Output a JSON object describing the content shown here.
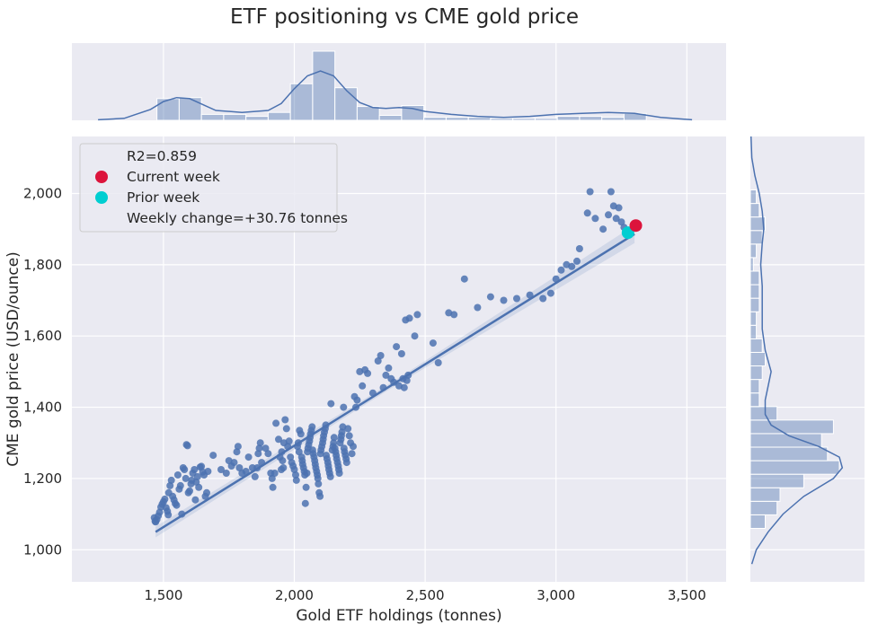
{
  "chart_data": {
    "type": "scatter",
    "title": "ETF positioning vs CME gold price",
    "xlabel": "Gold ETF holdings (tonnes)",
    "ylabel": "CME gold price (USD/ounce)",
    "xlim": [
      1150,
      3650
    ],
    "ylim": [
      910,
      2160
    ],
    "xticks": [
      "1,500",
      "2,000",
      "2,500",
      "3,000",
      "3,500"
    ],
    "xtick_values": [
      1500,
      2000,
      2500,
      3000,
      3500
    ],
    "yticks": [
      "1,000",
      "1,200",
      "1,400",
      "1,600",
      "1,800",
      "2,000"
    ],
    "ytick_values": [
      1000,
      1200,
      1400,
      1600,
      1800,
      2000
    ],
    "grid": true,
    "background": "#eaeaf2",
    "colors": {
      "scatter": "#4c72b0",
      "current_week": "#dc143c",
      "prior_week": "#00ced1",
      "hist": "#4c72b0"
    },
    "legend": {
      "placement": "upper-left",
      "entries": [
        {
          "label": "R2=0.859",
          "marker": "none"
        },
        {
          "label": "Current week",
          "marker": "current_week"
        },
        {
          "label": "Prior week",
          "marker": "prior_week"
        },
        {
          "label": "Weekly change=+30.76 tonnes",
          "marker": "none"
        }
      ]
    },
    "regression": {
      "x": [
        1470,
        3300
      ],
      "y": [
        1050,
        1886
      ]
    },
    "current_week": {
      "x": 3305,
      "y": 1910
    },
    "prior_week": {
      "x": 3275,
      "y": 1890
    },
    "points": [
      [
        1465,
        1090
      ],
      [
        1468,
        1080
      ],
      [
        1470,
        1078
      ],
      [
        1475,
        1085
      ],
      [
        1480,
        1095
      ],
      [
        1485,
        1105
      ],
      [
        1490,
        1120
      ],
      [
        1495,
        1128
      ],
      [
        1500,
        1135
      ],
      [
        1505,
        1142
      ],
      [
        1510,
        1118
      ],
      [
        1515,
        1108
      ],
      [
        1518,
        1098
      ],
      [
        1520,
        1160
      ],
      [
        1525,
        1180
      ],
      [
        1530,
        1195
      ],
      [
        1535,
        1150
      ],
      [
        1540,
        1140
      ],
      [
        1545,
        1130
      ],
      [
        1550,
        1125
      ],
      [
        1555,
        1210
      ],
      [
        1560,
        1170
      ],
      [
        1565,
        1180
      ],
      [
        1570,
        1100
      ],
      [
        1575,
        1230
      ],
      [
        1580,
        1225
      ],
      [
        1585,
        1200
      ],
      [
        1588,
        1295
      ],
      [
        1592,
        1292
      ],
      [
        1595,
        1160
      ],
      [
        1600,
        1165
      ],
      [
        1605,
        1185
      ],
      [
        1608,
        1195
      ],
      [
        1612,
        1215
      ],
      [
        1618,
        1225
      ],
      [
        1622,
        1140
      ],
      [
        1625,
        1190
      ],
      [
        1630,
        1205
      ],
      [
        1635,
        1175
      ],
      [
        1640,
        1232
      ],
      [
        1645,
        1234
      ],
      [
        1650,
        1218
      ],
      [
        1655,
        1210
      ],
      [
        1660,
        1150
      ],
      [
        1665,
        1160
      ],
      [
        1670,
        1220
      ],
      [
        1690,
        1265
      ],
      [
        1720,
        1225
      ],
      [
        1740,
        1215
      ],
      [
        1750,
        1250
      ],
      [
        1760,
        1235
      ],
      [
        1770,
        1245
      ],
      [
        1780,
        1275
      ],
      [
        1785,
        1290
      ],
      [
        1790,
        1230
      ],
      [
        1800,
        1215
      ],
      [
        1815,
        1220
      ],
      [
        1825,
        1260
      ],
      [
        1840,
        1230
      ],
      [
        1850,
        1205
      ],
      [
        1858,
        1230
      ],
      [
        1862,
        1270
      ],
      [
        1866,
        1285
      ],
      [
        1870,
        1300
      ],
      [
        1875,
        1245
      ],
      [
        1890,
        1285
      ],
      [
        1900,
        1270
      ],
      [
        1910,
        1215
      ],
      [
        1915,
        1200
      ],
      [
        1918,
        1175
      ],
      [
        1925,
        1215
      ],
      [
        1930,
        1355
      ],
      [
        1940,
        1310
      ],
      [
        1945,
        1260
      ],
      [
        1950,
        1225
      ],
      [
        1952,
        1275
      ],
      [
        1955,
        1250
      ],
      [
        1958,
        1230
      ],
      [
        1960,
        1300
      ],
      [
        1965,
        1365
      ],
      [
        1970,
        1340
      ],
      [
        1975,
        1290
      ],
      [
        1980,
        1305
      ],
      [
        1985,
        1260
      ],
      [
        1990,
        1245
      ],
      [
        1995,
        1235
      ],
      [
        2000,
        1225
      ],
      [
        2005,
        1210
      ],
      [
        2008,
        1195
      ],
      [
        2012,
        1290
      ],
      [
        2015,
        1300
      ],
      [
        2018,
        1275
      ],
      [
        2020,
        1335
      ],
      [
        2025,
        1325
      ],
      [
        2028,
        1260
      ],
      [
        2030,
        1250
      ],
      [
        2032,
        1240
      ],
      [
        2035,
        1230
      ],
      [
        2038,
        1220
      ],
      [
        2040,
        1210
      ],
      [
        2042,
        1130
      ],
      [
        2045,
        1175
      ],
      [
        2048,
        1215
      ],
      [
        2050,
        1275
      ],
      [
        2052,
        1285
      ],
      [
        2055,
        1295
      ],
      [
        2058,
        1305
      ],
      [
        2060,
        1315
      ],
      [
        2062,
        1325
      ],
      [
        2065,
        1335
      ],
      [
        2068,
        1345
      ],
      [
        2070,
        1280
      ],
      [
        2072,
        1270
      ],
      [
        2075,
        1260
      ],
      [
        2078,
        1250
      ],
      [
        2080,
        1240
      ],
      [
        2082,
        1230
      ],
      [
        2085,
        1220
      ],
      [
        2088,
        1210
      ],
      [
        2090,
        1200
      ],
      [
        2092,
        1185
      ],
      [
        2095,
        1160
      ],
      [
        2098,
        1150
      ],
      [
        2100,
        1270
      ],
      [
        2102,
        1280
      ],
      [
        2105,
        1290
      ],
      [
        2108,
        1300
      ],
      [
        2110,
        1310
      ],
      [
        2112,
        1320
      ],
      [
        2115,
        1330
      ],
      [
        2118,
        1340
      ],
      [
        2120,
        1350
      ],
      [
        2122,
        1265
      ],
      [
        2125,
        1255
      ],
      [
        2128,
        1245
      ],
      [
        2130,
        1235
      ],
      [
        2132,
        1225
      ],
      [
        2135,
        1215
      ],
      [
        2138,
        1205
      ],
      [
        2140,
        1410
      ],
      [
        2145,
        1280
      ],
      [
        2148,
        1290
      ],
      [
        2150,
        1300
      ],
      [
        2152,
        1315
      ],
      [
        2155,
        1285
      ],
      [
        2158,
        1275
      ],
      [
        2160,
        1265
      ],
      [
        2162,
        1255
      ],
      [
        2165,
        1245
      ],
      [
        2168,
        1235
      ],
      [
        2170,
        1225
      ],
      [
        2172,
        1215
      ],
      [
        2175,
        1300
      ],
      [
        2178,
        1310
      ],
      [
        2180,
        1320
      ],
      [
        2182,
        1330
      ],
      [
        2185,
        1345
      ],
      [
        2188,
        1400
      ],
      [
        2190,
        1285
      ],
      [
        2192,
        1275
      ],
      [
        2195,
        1265
      ],
      [
        2198,
        1255
      ],
      [
        2200,
        1245
      ],
      [
        2205,
        1340
      ],
      [
        2210,
        1320
      ],
      [
        2215,
        1300
      ],
      [
        2220,
        1270
      ],
      [
        2225,
        1290
      ],
      [
        2230,
        1430
      ],
      [
        2235,
        1400
      ],
      [
        2240,
        1420
      ],
      [
        2250,
        1500
      ],
      [
        2260,
        1460
      ],
      [
        2270,
        1505
      ],
      [
        2280,
        1495
      ],
      [
        2300,
        1440
      ],
      [
        2320,
        1530
      ],
      [
        2330,
        1545
      ],
      [
        2340,
        1455
      ],
      [
        2350,
        1490
      ],
      [
        2360,
        1510
      ],
      [
        2370,
        1480
      ],
      [
        2380,
        1470
      ],
      [
        2390,
        1570
      ],
      [
        2400,
        1460
      ],
      [
        2410,
        1550
      ],
      [
        2415,
        1480
      ],
      [
        2420,
        1455
      ],
      [
        2425,
        1645
      ],
      [
        2430,
        1475
      ],
      [
        2435,
        1490
      ],
      [
        2440,
        1650
      ],
      [
        2460,
        1600
      ],
      [
        2470,
        1660
      ],
      [
        2530,
        1580
      ],
      [
        2550,
        1525
      ],
      [
        2590,
        1665
      ],
      [
        2610,
        1660
      ],
      [
        2650,
        1760
      ],
      [
        2700,
        1680
      ],
      [
        2750,
        1710
      ],
      [
        2800,
        1700
      ],
      [
        2850,
        1705
      ],
      [
        2900,
        1715
      ],
      [
        2950,
        1705
      ],
      [
        2980,
        1720
      ],
      [
        3000,
        1760
      ],
      [
        3020,
        1785
      ],
      [
        3040,
        1800
      ],
      [
        3060,
        1795
      ],
      [
        3080,
        1810
      ],
      [
        3090,
        1845
      ],
      [
        3120,
        1945
      ],
      [
        3130,
        2005
      ],
      [
        3150,
        1930
      ],
      [
        3180,
        1900
      ],
      [
        3200,
        1940
      ],
      [
        3210,
        2005
      ],
      [
        3220,
        1965
      ],
      [
        3230,
        1930
      ],
      [
        3240,
        1960
      ],
      [
        3250,
        1920
      ],
      [
        3260,
        1905
      ],
      [
        3270,
        1885
      ]
    ],
    "marginal_x": {
      "bin_edges": [
        1475,
        1560,
        1645,
        1730,
        1815,
        1900,
        1985,
        2070,
        2155,
        2240,
        2325,
        2410,
        2495,
        2580,
        2665,
        2750,
        2835,
        2920,
        3005,
        3090,
        3175,
        3260,
        3345
      ],
      "density": [
        0.22,
        0.23,
        0.06,
        0.06,
        0.04,
        0.08,
        0.37,
        0.7,
        0.33,
        0.14,
        0.05,
        0.15,
        0.03,
        0.03,
        0.03,
        0.02,
        0.02,
        0.02,
        0.04,
        0.04,
        0.03,
        0.07
      ],
      "kde_x": [
        1250,
        1350,
        1450,
        1500,
        1550,
        1600,
        1650,
        1700,
        1800,
        1900,
        1950,
        2000,
        2050,
        2100,
        2150,
        2200,
        2250,
        2300,
        2350,
        2400,
        2450,
        2500,
        2600,
        2700,
        2800,
        2900,
        3000,
        3100,
        3200,
        3300,
        3400,
        3520
      ],
      "kde_y": [
        0.005,
        0.02,
        0.11,
        0.19,
        0.23,
        0.22,
        0.16,
        0.1,
        0.08,
        0.1,
        0.17,
        0.32,
        0.45,
        0.5,
        0.45,
        0.3,
        0.18,
        0.13,
        0.12,
        0.13,
        0.12,
        0.09,
        0.06,
        0.04,
        0.03,
        0.04,
        0.06,
        0.07,
        0.08,
        0.07,
        0.03,
        0.005
      ]
    },
    "marginal_y": {
      "bin_edges": [
        1060,
        1098,
        1136,
        1174,
        1212,
        1250,
        1288,
        1326,
        1364,
        1402,
        1440,
        1478,
        1516,
        1554,
        1592,
        1630,
        1668,
        1706,
        1744,
        1782,
        1820,
        1858,
        1896,
        1934,
        1972,
        2010
      ],
      "density": [
        0.05,
        0.09,
        0.1,
        0.18,
        0.3,
        0.26,
        0.24,
        0.28,
        0.09,
        0.03,
        0.03,
        0.04,
        0.05,
        0.04,
        0.02,
        0.02,
        0.03,
        0.03,
        0.03,
        0.01,
        0.02,
        0.04,
        0.05,
        0.03,
        0.02
      ],
      "kde_y": [
        960,
        1000,
        1050,
        1100,
        1150,
        1200,
        1230,
        1260,
        1290,
        1320,
        1350,
        1380,
        1420,
        1460,
        1500,
        1560,
        1620,
        1680,
        1740,
        1800,
        1860,
        1900,
        1950,
        2000,
        2050,
        2100,
        2160
      ],
      "kde_x": [
        0.005,
        0.02,
        0.06,
        0.11,
        0.18,
        0.28,
        0.31,
        0.3,
        0.23,
        0.13,
        0.07,
        0.05,
        0.05,
        0.06,
        0.07,
        0.05,
        0.04,
        0.04,
        0.04,
        0.035,
        0.04,
        0.045,
        0.04,
        0.03,
        0.015,
        0.005,
        0.002
      ]
    }
  }
}
